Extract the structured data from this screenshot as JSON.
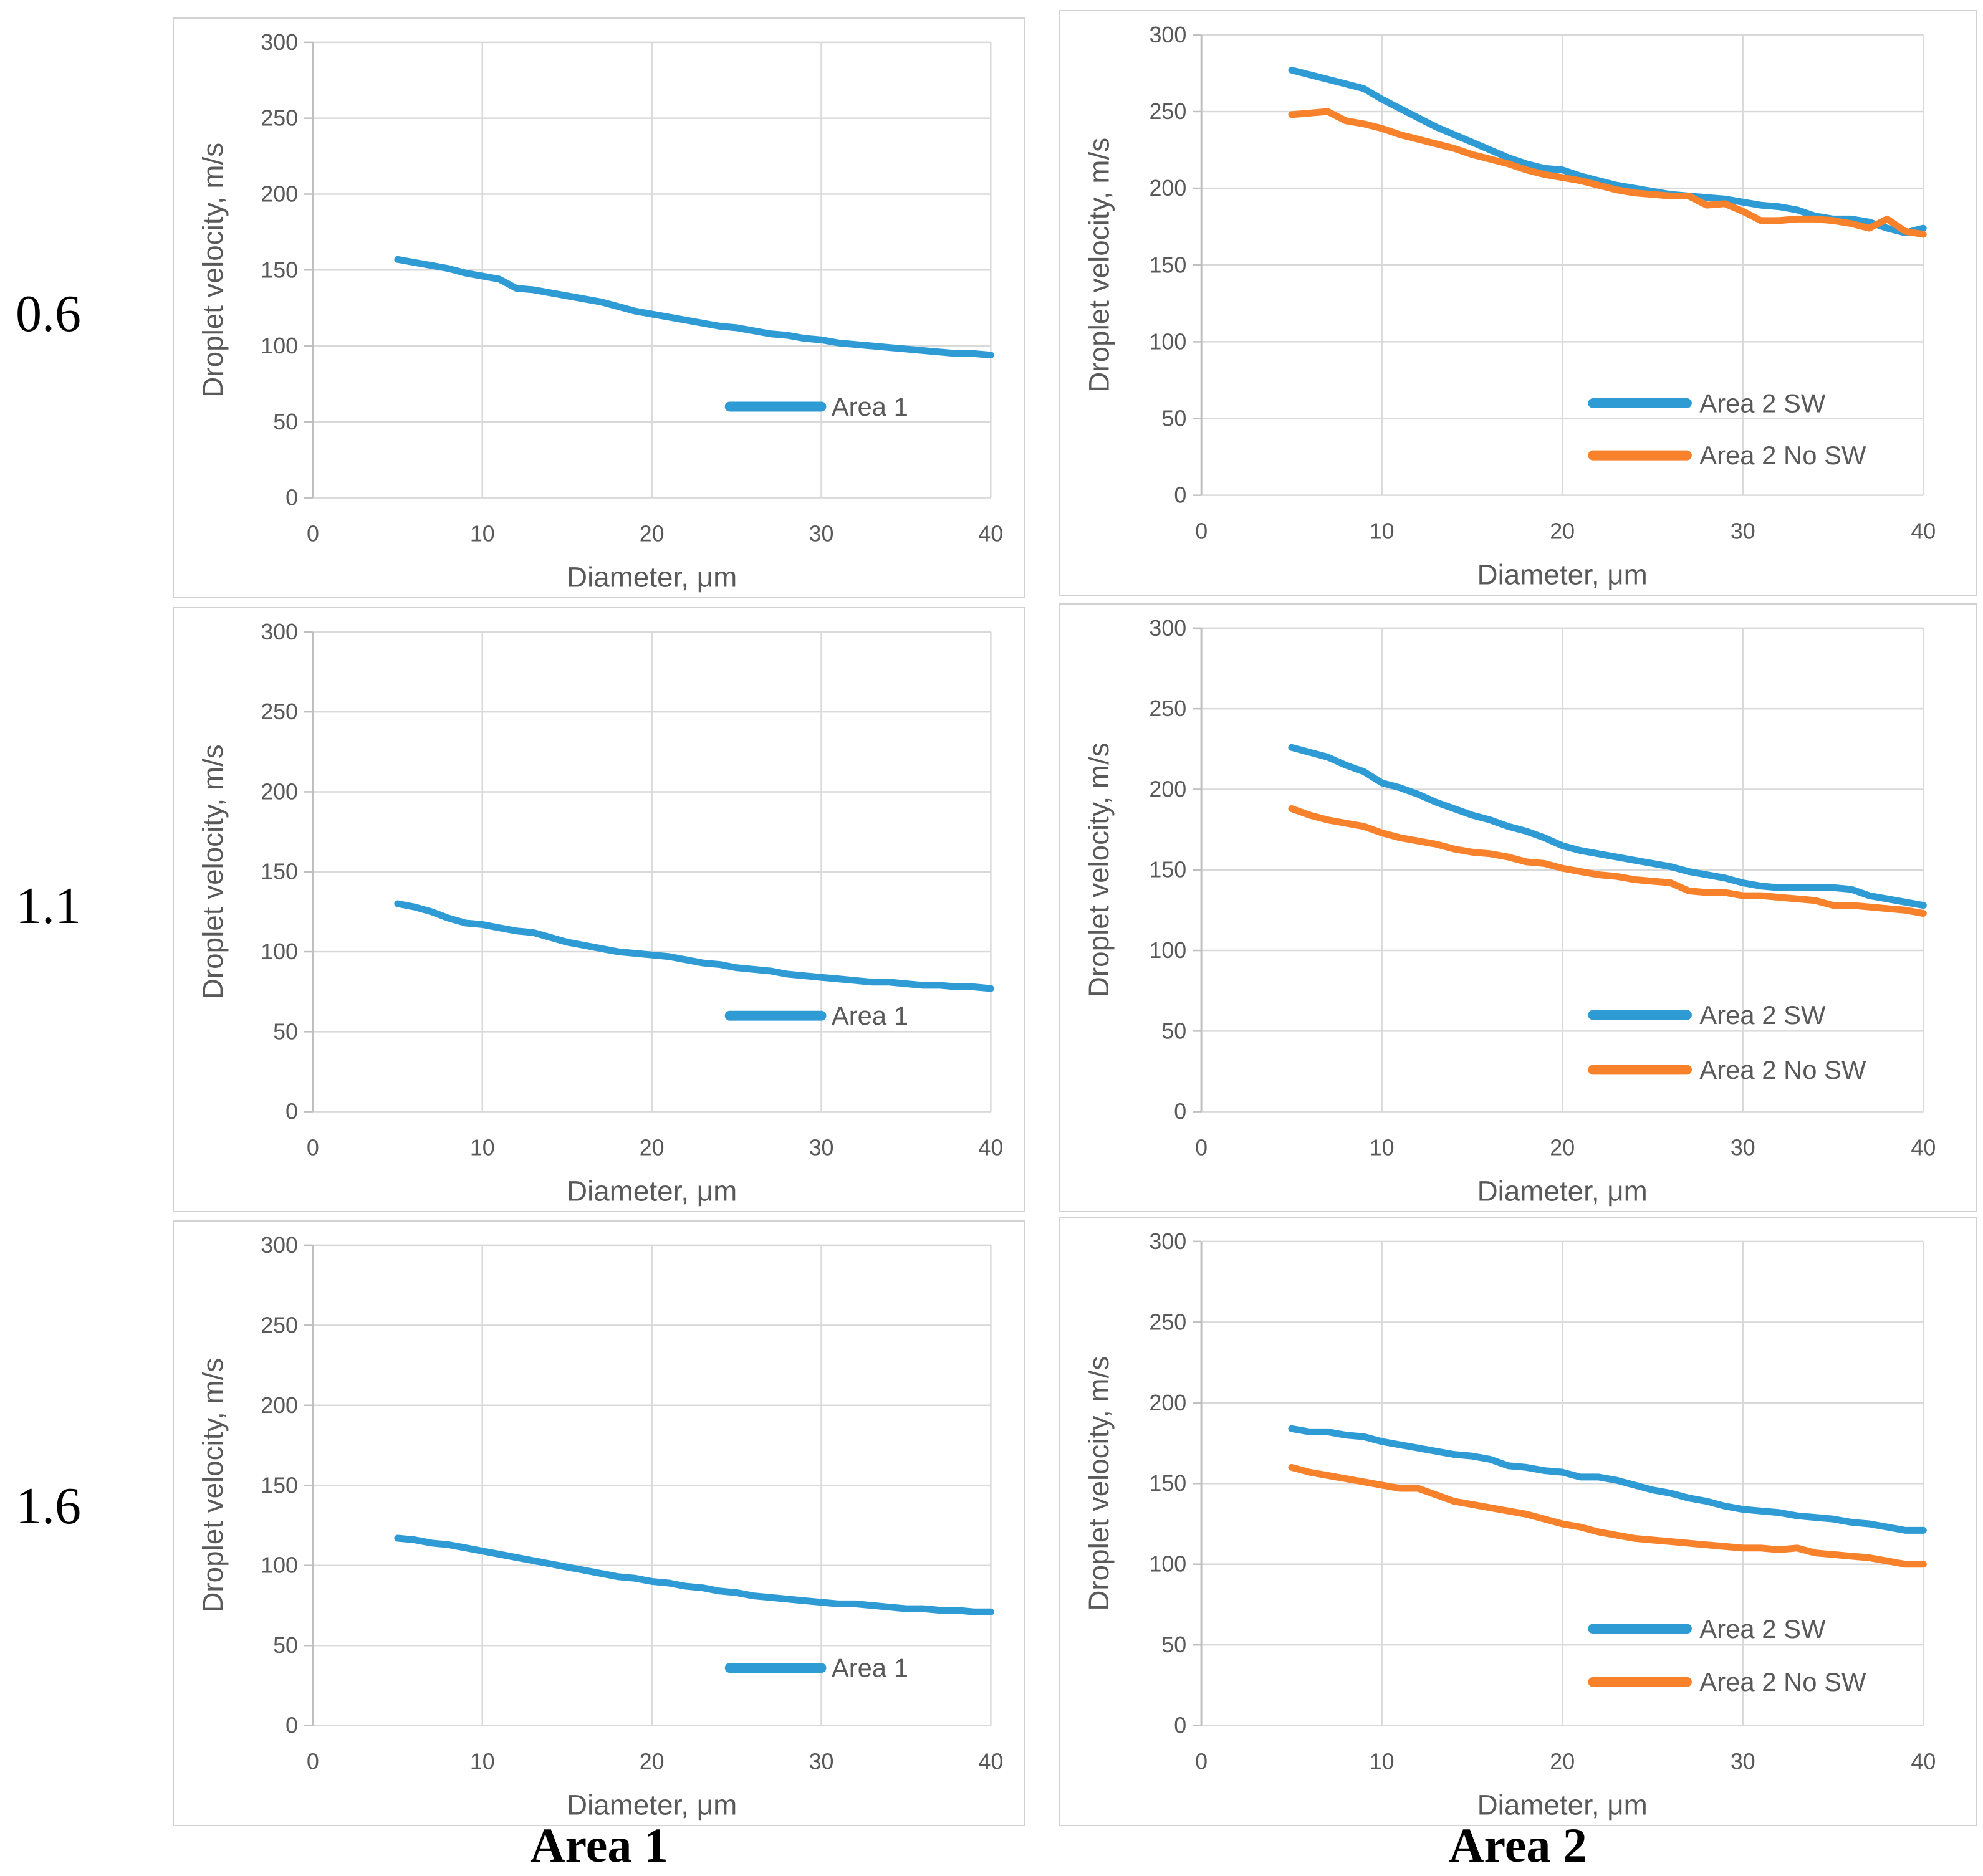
{
  "row_labels": [
    "0.6",
    "1.1",
    "1.6"
  ],
  "captions": [
    "Area 1",
    "Area 2"
  ],
  "colors": {
    "series_blue": "#2E9BD5",
    "series_orange": "#F8812B",
    "gridline": "#D9D9D9",
    "axis_line": "#BFBFBF",
    "chart_text": "#595959",
    "panel_border": "#D2D2D2",
    "label_text": "#000000"
  },
  "axes": {
    "x_label": "Diameter, μm",
    "y_label": "Droplet velocity, m/s",
    "x_ticks": [
      0,
      10,
      20,
      30,
      40
    ],
    "y_ticks": [
      0,
      50,
      100,
      150,
      200,
      250,
      300
    ],
    "x_range": [
      0,
      40
    ],
    "y_range": [
      0,
      300
    ],
    "grid": true
  },
  "chart_data": [
    {
      "type": "line",
      "row_label": "0.6",
      "column": "Area 1",
      "x": [
        5,
        6,
        7,
        8,
        9,
        10,
        11,
        12,
        13,
        14,
        15,
        16,
        17,
        18,
        19,
        20,
        21,
        22,
        23,
        24,
        25,
        26,
        27,
        28,
        29,
        30,
        31,
        32,
        33,
        34,
        35,
        36,
        37,
        38,
        39,
        40
      ],
      "series": [
        {
          "name": "Area 1",
          "color": "series_blue",
          "values": [
            157,
            155,
            153,
            151,
            148,
            146,
            144,
            138,
            137,
            135,
            133,
            131,
            129,
            126,
            123,
            121,
            119,
            117,
            115,
            113,
            112,
            110,
            108,
            107,
            105,
            104,
            102,
            101,
            100,
            99,
            98,
            97,
            96,
            95,
            95,
            94
          ]
        }
      ],
      "legend": {
        "position": "inside-right",
        "x_line_start": 24.6,
        "x_line_end": 30.0,
        "x_text": 30.6,
        "rows": [
          {
            "label": "Area 1",
            "y_value": 60,
            "color": "series_blue"
          }
        ]
      }
    },
    {
      "type": "line",
      "row_label": "0.6",
      "column": "Area 2",
      "x": [
        5,
        6,
        7,
        8,
        9,
        10,
        11,
        12,
        13,
        14,
        15,
        16,
        17,
        18,
        19,
        20,
        21,
        22,
        23,
        24,
        25,
        26,
        27,
        28,
        29,
        30,
        31,
        32,
        33,
        34,
        35,
        36,
        37,
        38,
        39,
        40
      ],
      "series": [
        {
          "name": "Area 2 SW",
          "color": "series_blue",
          "values": [
            277,
            274,
            271,
            268,
            265,
            258,
            252,
            246,
            240,
            235,
            230,
            225,
            220,
            216,
            213,
            212,
            208,
            205,
            202,
            200,
            198,
            196,
            195,
            194,
            193,
            191,
            189,
            188,
            186,
            182,
            180,
            180,
            178,
            174,
            171,
            174
          ]
        },
        {
          "name": "Area 2 No SW",
          "color": "series_orange",
          "values": [
            248,
            249,
            250,
            244,
            242,
            239,
            235,
            232,
            229,
            226,
            222,
            219,
            216,
            212,
            209,
            207,
            205,
            202,
            199,
            197,
            196,
            195,
            195,
            189,
            190,
            185,
            179,
            179,
            180,
            180,
            179,
            177,
            174,
            180,
            172,
            170
          ]
        }
      ],
      "legend": {
        "position": "inside-right",
        "x_line_start": 21.7,
        "x_line_end": 26.9,
        "x_text": 27.6,
        "rows": [
          {
            "label": "Area 2 SW",
            "y_value": 60,
            "color": "series_blue"
          },
          {
            "label": "Area 2 No SW",
            "y_value": 26,
            "color": "series_orange"
          }
        ]
      }
    },
    {
      "type": "line",
      "row_label": "1.1",
      "column": "Area 1",
      "x": [
        5,
        6,
        7,
        8,
        9,
        10,
        11,
        12,
        13,
        14,
        15,
        16,
        17,
        18,
        19,
        20,
        21,
        22,
        23,
        24,
        25,
        26,
        27,
        28,
        29,
        30,
        31,
        32,
        33,
        34,
        35,
        36,
        37,
        38,
        39,
        40
      ],
      "series": [
        {
          "name": "Area 1",
          "color": "series_blue",
          "values": [
            130,
            128,
            125,
            121,
            118,
            117,
            115,
            113,
            112,
            109,
            106,
            104,
            102,
            100,
            99,
            98,
            97,
            95,
            93,
            92,
            90,
            89,
            88,
            86,
            85,
            84,
            83,
            82,
            81,
            81,
            80,
            79,
            79,
            78,
            78,
            77
          ]
        }
      ],
      "legend": {
        "position": "inside-right",
        "x_line_start": 24.6,
        "x_line_end": 30.0,
        "x_text": 30.6,
        "rows": [
          {
            "label": "Area 1",
            "y_value": 60,
            "color": "series_blue"
          }
        ]
      }
    },
    {
      "type": "line",
      "row_label": "1.1",
      "column": "Area 2",
      "x": [
        5,
        6,
        7,
        8,
        9,
        10,
        11,
        12,
        13,
        14,
        15,
        16,
        17,
        18,
        19,
        20,
        21,
        22,
        23,
        24,
        25,
        26,
        27,
        28,
        29,
        30,
        31,
        32,
        33,
        34,
        35,
        36,
        37,
        38,
        39,
        40
      ],
      "series": [
        {
          "name": "Area 2 SW",
          "color": "series_blue",
          "values": [
            226,
            223,
            220,
            215,
            211,
            204,
            201,
            197,
            192,
            188,
            184,
            181,
            177,
            174,
            170,
            165,
            162,
            160,
            158,
            156,
            154,
            152,
            149,
            147,
            145,
            142,
            140,
            139,
            139,
            139,
            139,
            138,
            134,
            132,
            130,
            128
          ]
        },
        {
          "name": "Area 2 No SW",
          "color": "series_orange",
          "values": [
            188,
            184,
            181,
            179,
            177,
            173,
            170,
            168,
            166,
            163,
            161,
            160,
            158,
            155,
            154,
            151,
            149,
            147,
            146,
            144,
            143,
            142,
            137,
            136,
            136,
            134,
            134,
            133,
            132,
            131,
            128,
            128,
            127,
            126,
            125,
            123
          ]
        }
      ],
      "legend": {
        "position": "inside-right",
        "x_line_start": 21.7,
        "x_line_end": 26.9,
        "x_text": 27.6,
        "rows": [
          {
            "label": "Area 2 SW",
            "y_value": 60,
            "color": "series_blue"
          },
          {
            "label": "Area 2 No SW",
            "y_value": 26,
            "color": "series_orange"
          }
        ]
      }
    },
    {
      "type": "line",
      "row_label": "1.6",
      "column": "Area 1",
      "x": [
        5,
        6,
        7,
        8,
        9,
        10,
        11,
        12,
        13,
        14,
        15,
        16,
        17,
        18,
        19,
        20,
        21,
        22,
        23,
        24,
        25,
        26,
        27,
        28,
        29,
        30,
        31,
        32,
        33,
        34,
        35,
        36,
        37,
        38,
        39,
        40
      ],
      "series": [
        {
          "name": "Area 1",
          "color": "series_blue",
          "values": [
            117,
            116,
            114,
            113,
            111,
            109,
            107,
            105,
            103,
            101,
            99,
            97,
            95,
            93,
            92,
            90,
            89,
            87,
            86,
            84,
            83,
            81,
            80,
            79,
            78,
            77,
            76,
            76,
            75,
            74,
            73,
            73,
            72,
            72,
            71,
            71
          ]
        }
      ],
      "legend": {
        "position": "inside-right",
        "x_line_start": 24.6,
        "x_line_end": 30.0,
        "x_text": 30.6,
        "rows": [
          {
            "label": "Area 1",
            "y_value": 36,
            "color": "series_blue"
          }
        ]
      }
    },
    {
      "type": "line",
      "row_label": "1.6",
      "column": "Area 2",
      "x": [
        5,
        6,
        7,
        8,
        9,
        10,
        11,
        12,
        13,
        14,
        15,
        16,
        17,
        18,
        19,
        20,
        21,
        22,
        23,
        24,
        25,
        26,
        27,
        28,
        29,
        30,
        31,
        32,
        33,
        34,
        35,
        36,
        37,
        38,
        39,
        40
      ],
      "series": [
        {
          "name": "Area 2 SW",
          "color": "series_blue",
          "values": [
            184,
            182,
            182,
            180,
            179,
            176,
            174,
            172,
            170,
            168,
            167,
            165,
            161,
            160,
            158,
            157,
            154,
            154,
            152,
            149,
            146,
            144,
            141,
            139,
            136,
            134,
            133,
            132,
            130,
            129,
            128,
            126,
            125,
            123,
            121,
            121
          ]
        },
        {
          "name": "Area 2 No SW",
          "color": "series_orange",
          "values": [
            160,
            157,
            155,
            153,
            151,
            149,
            147,
            147,
            143,
            139,
            137,
            135,
            133,
            131,
            128,
            125,
            123,
            120,
            118,
            116,
            115,
            114,
            113,
            112,
            111,
            110,
            110,
            109,
            110,
            107,
            106,
            105,
            104,
            102,
            100,
            100
          ]
        }
      ],
      "legend": {
        "position": "inside-right",
        "x_line_start": 21.7,
        "x_line_end": 26.9,
        "x_text": 27.6,
        "rows": [
          {
            "label": "Area 2 SW",
            "y_value": 60,
            "color": "series_blue"
          },
          {
            "label": "Area 2 No SW",
            "y_value": 27,
            "color": "series_orange"
          }
        ]
      }
    }
  ]
}
